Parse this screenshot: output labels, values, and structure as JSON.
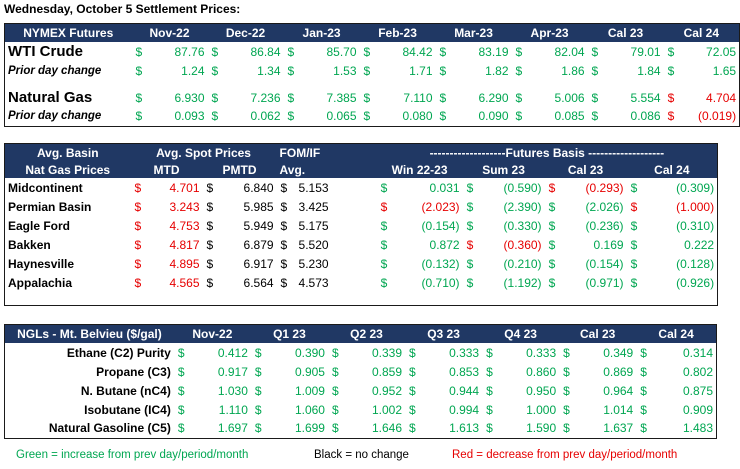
{
  "title": "Wednesday, October 5 Settlement Prices:",
  "nymex": {
    "header": "NYMEX Futures",
    "columns": [
      "Nov-22",
      "Dec-22",
      "Jan-23",
      "Feb-23",
      "Mar-23",
      "Apr-23",
      "Cal 23",
      "Cal 24"
    ],
    "wti": {
      "label": "WTI Crude",
      "values": [
        {
          "c": "g",
          "v": "87.76"
        },
        {
          "c": "g",
          "v": "86.84"
        },
        {
          "c": "g",
          "v": "85.70"
        },
        {
          "c": "g",
          "v": "84.42"
        },
        {
          "c": "g",
          "v": "83.19"
        },
        {
          "c": "g",
          "v": "82.04"
        },
        {
          "c": "g",
          "v": "79.01"
        },
        {
          "c": "g",
          "v": "72.05"
        }
      ]
    },
    "wti_change": {
      "label": "Prior day change",
      "values": [
        {
          "c": "g",
          "v": "1.24"
        },
        {
          "c": "g",
          "v": "1.34"
        },
        {
          "c": "g",
          "v": "1.53"
        },
        {
          "c": "g",
          "v": "1.71"
        },
        {
          "c": "g",
          "v": "1.82"
        },
        {
          "c": "g",
          "v": "1.86"
        },
        {
          "c": "g",
          "v": "1.84"
        },
        {
          "c": "g",
          "v": "1.65"
        }
      ]
    },
    "gas": {
      "label": "Natural Gas",
      "values": [
        {
          "c": "g",
          "v": "6.930"
        },
        {
          "c": "g",
          "v": "7.236"
        },
        {
          "c": "g",
          "v": "7.385"
        },
        {
          "c": "g",
          "v": "7.110"
        },
        {
          "c": "g",
          "v": "6.290"
        },
        {
          "c": "g",
          "v": "5.006"
        },
        {
          "c": "g",
          "v": "5.554"
        },
        {
          "c": "r",
          "v": "4.704"
        }
      ]
    },
    "gas_change": {
      "label": "Prior day change",
      "values": [
        {
          "c": "g",
          "v": "0.093"
        },
        {
          "c": "g",
          "v": "0.062"
        },
        {
          "c": "g",
          "v": "0.065"
        },
        {
          "c": "g",
          "v": "0.080"
        },
        {
          "c": "g",
          "v": "0.090"
        },
        {
          "c": "g",
          "v": "0.085"
        },
        {
          "c": "g",
          "v": "0.086"
        },
        {
          "c": "r",
          "v": "(0.019)"
        }
      ]
    }
  },
  "basin": {
    "h1": {
      "avg_basin": "Avg. Basin",
      "avg_spot": "Avg. Spot Prices",
      "fom": "FOM/IF",
      "futures_basis": "-------------------Futures Basis -------------------"
    },
    "h2": {
      "nat_gas": "Nat Gas Prices",
      "mtd": "MTD",
      "pmtd": "PMTD",
      "avg": "Avg.",
      "win": "Win 22-23",
      "sum": "Sum 23",
      "cal23": "Cal 23",
      "cal24": "Cal 24"
    },
    "rows": [
      {
        "name": "Midcontinent",
        "mtd": {
          "c": "r",
          "v": "4.701"
        },
        "pmtd": {
          "c": "k",
          "v": "6.840"
        },
        "fom": "5.153",
        "basis": [
          {
            "c": "g",
            "v": "0.031"
          },
          {
            "c": "g",
            "v": "(0.590)"
          },
          {
            "c": "r",
            "v": "(0.293)"
          },
          {
            "c": "g",
            "v": "(0.309)"
          }
        ]
      },
      {
        "name": "Permian Basin",
        "mtd": {
          "c": "r",
          "v": "3.243"
        },
        "pmtd": {
          "c": "k",
          "v": "5.985"
        },
        "fom": "3.425",
        "basis": [
          {
            "c": "r",
            "v": "(2.023)"
          },
          {
            "c": "g",
            "v": "(2.390)"
          },
          {
            "c": "g",
            "v": "(2.026)"
          },
          {
            "c": "r",
            "v": "(1.000)"
          }
        ]
      },
      {
        "name": "Eagle Ford",
        "mtd": {
          "c": "r",
          "v": "4.753"
        },
        "pmtd": {
          "c": "k",
          "v": "5.949"
        },
        "fom": "5.175",
        "basis": [
          {
            "c": "g",
            "v": "(0.154)"
          },
          {
            "c": "g",
            "v": "(0.330)"
          },
          {
            "c": "g",
            "v": "(0.236)"
          },
          {
            "c": "g",
            "v": "(0.310)"
          }
        ]
      },
      {
        "name": "Bakken",
        "mtd": {
          "c": "r",
          "v": "4.817"
        },
        "pmtd": {
          "c": "k",
          "v": "6.879"
        },
        "fom": "5.520",
        "basis": [
          {
            "c": "g",
            "v": "0.872"
          },
          {
            "c": "r",
            "v": "(0.360)"
          },
          {
            "c": "g",
            "v": "0.169"
          },
          {
            "c": "g",
            "v": "0.222"
          }
        ]
      },
      {
        "name": "Haynesville",
        "mtd": {
          "c": "r",
          "v": "4.895"
        },
        "pmtd": {
          "c": "k",
          "v": "6.917"
        },
        "fom": "5.230",
        "basis": [
          {
            "c": "g",
            "v": "(0.132)"
          },
          {
            "c": "g",
            "v": "(0.210)"
          },
          {
            "c": "g",
            "v": "(0.154)"
          },
          {
            "c": "g",
            "v": "(0.128)"
          }
        ]
      },
      {
        "name": "Appalachia",
        "mtd": {
          "c": "r",
          "v": "4.565"
        },
        "pmtd": {
          "c": "k",
          "v": "6.564"
        },
        "fom": "4.573",
        "basis": [
          {
            "c": "g",
            "v": "(0.710)"
          },
          {
            "c": "g",
            "v": "(1.192)"
          },
          {
            "c": "g",
            "v": "(0.971)"
          },
          {
            "c": "g",
            "v": "(0.926)"
          }
        ]
      }
    ]
  },
  "ngl": {
    "header": "NGLs - Mt. Belvieu ($/gal)",
    "columns": [
      "Nov-22",
      "Q1 23",
      "Q2 23",
      "Q3 23",
      "Q4 23",
      "Cal 23",
      "Cal 24"
    ],
    "rows": [
      {
        "name": "Ethane (C2) Purity",
        "values": [
          {
            "c": "g",
            "v": "0.412"
          },
          {
            "c": "g",
            "v": "0.390"
          },
          {
            "c": "g",
            "v": "0.339"
          },
          {
            "c": "g",
            "v": "0.333"
          },
          {
            "c": "g",
            "v": "0.333"
          },
          {
            "c": "g",
            "v": "0.349"
          },
          {
            "c": "g",
            "v": "0.314"
          }
        ]
      },
      {
        "name": "Propane (C3)",
        "values": [
          {
            "c": "g",
            "v": "0.917"
          },
          {
            "c": "g",
            "v": "0.905"
          },
          {
            "c": "g",
            "v": "0.859"
          },
          {
            "c": "g",
            "v": "0.853"
          },
          {
            "c": "g",
            "v": "0.860"
          },
          {
            "c": "g",
            "v": "0.869"
          },
          {
            "c": "g",
            "v": "0.802"
          }
        ]
      },
      {
        "name": "N. Butane (nC4)",
        "values": [
          {
            "c": "g",
            "v": "1.030"
          },
          {
            "c": "g",
            "v": "1.009"
          },
          {
            "c": "g",
            "v": "0.952"
          },
          {
            "c": "g",
            "v": "0.944"
          },
          {
            "c": "g",
            "v": "0.950"
          },
          {
            "c": "g",
            "v": "0.964"
          },
          {
            "c": "g",
            "v": "0.875"
          }
        ]
      },
      {
        "name": "Isobutane (IC4)",
        "values": [
          {
            "c": "g",
            "v": "1.110"
          },
          {
            "c": "g",
            "v": "1.060"
          },
          {
            "c": "g",
            "v": "1.002"
          },
          {
            "c": "g",
            "v": "0.994"
          },
          {
            "c": "g",
            "v": "1.000"
          },
          {
            "c": "g",
            "v": "1.014"
          },
          {
            "c": "g",
            "v": "0.909"
          }
        ]
      },
      {
        "name": "Natural Gasoline (C5)",
        "values": [
          {
            "c": "g",
            "v": "1.697"
          },
          {
            "c": "g",
            "v": "1.699"
          },
          {
            "c": "g",
            "v": "1.646"
          },
          {
            "c": "g",
            "v": "1.613"
          },
          {
            "c": "g",
            "v": "1.590"
          },
          {
            "c": "g",
            "v": "1.637"
          },
          {
            "c": "g",
            "v": "1.483"
          }
        ]
      }
    ]
  },
  "legend": {
    "green": "Green = increase from prev day/period/month",
    "black": "Black = no change",
    "red": "Red = decrease from prev day/period/month"
  },
  "colors": {
    "header_bg": "#203864",
    "increase": "#00a651",
    "decrease": "#e60000",
    "no_change": "#000000"
  },
  "currency_symbol": "$"
}
